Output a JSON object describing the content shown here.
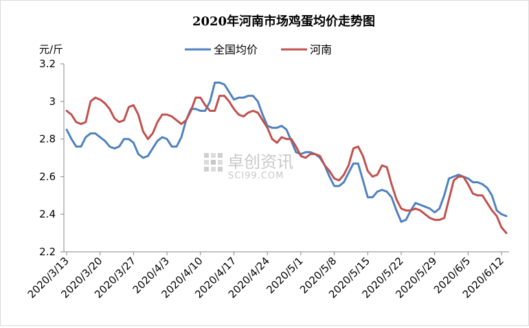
{
  "chart_data": {
    "type": "line",
    "title": "2020年河南市场鸡蛋均价走势图",
    "ylabel": "元/斤",
    "ylim": [
      2.2,
      3.2
    ],
    "yticks": [
      "2.2",
      "2.4",
      "2.6",
      "2.8",
      "3",
      "3.2"
    ],
    "ytick_values": [
      2.2,
      2.4,
      2.6,
      2.8,
      3.0,
      3.2
    ],
    "grid": false,
    "legend_position": "top",
    "xtick_labels": [
      "2020/3/13",
      "2020/3/20",
      "2020/3/27",
      "2020/4/3",
      "2020/4/10",
      "2020/4/17",
      "2020/4/24",
      "2020/5/1",
      "2020/5/8",
      "2020/5/15",
      "2020/5/22",
      "2020/5/29",
      "2020/6/5",
      "2020/6/12"
    ],
    "series": [
      {
        "name": "全国均价",
        "color": "#4f81bd",
        "values": [
          2.85,
          2.8,
          2.76,
          2.76,
          2.81,
          2.83,
          2.83,
          2.81,
          2.79,
          2.76,
          2.75,
          2.76,
          2.8,
          2.8,
          2.78,
          2.72,
          2.7,
          2.71,
          2.75,
          2.79,
          2.81,
          2.8,
          2.76,
          2.76,
          2.81,
          2.9,
          2.96,
          2.96,
          2.95,
          2.95,
          3.0,
          3.1,
          3.1,
          3.09,
          3.05,
          3.01,
          3.02,
          3.02,
          3.03,
          3.03,
          3.0,
          2.93,
          2.87,
          2.86,
          2.86,
          2.87,
          2.85,
          2.79,
          2.73,
          2.72,
          2.73,
          2.73,
          2.72,
          2.7,
          2.66,
          2.6,
          2.55,
          2.55,
          2.57,
          2.62,
          2.67,
          2.67,
          2.58,
          2.49,
          2.49,
          2.52,
          2.53,
          2.52,
          2.49,
          2.42,
          2.36,
          2.37,
          2.42,
          2.46,
          2.45,
          2.44,
          2.43,
          2.41,
          2.43,
          2.5,
          2.59,
          2.6,
          2.61,
          2.6,
          2.59,
          2.57,
          2.57,
          2.56,
          2.54,
          2.5,
          2.42,
          2.4,
          2.39
        ]
      },
      {
        "name": "河南",
        "color": "#c0504d",
        "values": [
          2.95,
          2.93,
          2.89,
          2.88,
          2.89,
          3.0,
          3.02,
          3.01,
          2.99,
          2.96,
          2.91,
          2.89,
          2.9,
          2.97,
          2.98,
          2.93,
          2.84,
          2.8,
          2.83,
          2.89,
          2.93,
          2.93,
          2.92,
          2.9,
          2.88,
          2.9,
          2.95,
          3.02,
          3.02,
          2.98,
          2.95,
          2.95,
          3.03,
          3.03,
          3.0,
          2.96,
          2.93,
          2.92,
          2.94,
          2.95,
          2.94,
          2.9,
          2.86,
          2.8,
          2.78,
          2.81,
          2.8,
          2.8,
          2.76,
          2.71,
          2.7,
          2.72,
          2.72,
          2.71,
          2.66,
          2.63,
          2.59,
          2.58,
          2.61,
          2.66,
          2.75,
          2.76,
          2.71,
          2.63,
          2.6,
          2.61,
          2.66,
          2.65,
          2.56,
          2.48,
          2.43,
          2.42,
          2.42,
          2.43,
          2.42,
          2.4,
          2.38,
          2.37,
          2.37,
          2.38,
          2.48,
          2.58,
          2.6,
          2.6,
          2.56,
          2.51,
          2.5,
          2.5,
          2.46,
          2.42,
          2.39,
          2.33,
          2.3
        ]
      }
    ]
  },
  "watermark": {
    "cn": "卓创资讯",
    "en": "SCI99.COM"
  }
}
